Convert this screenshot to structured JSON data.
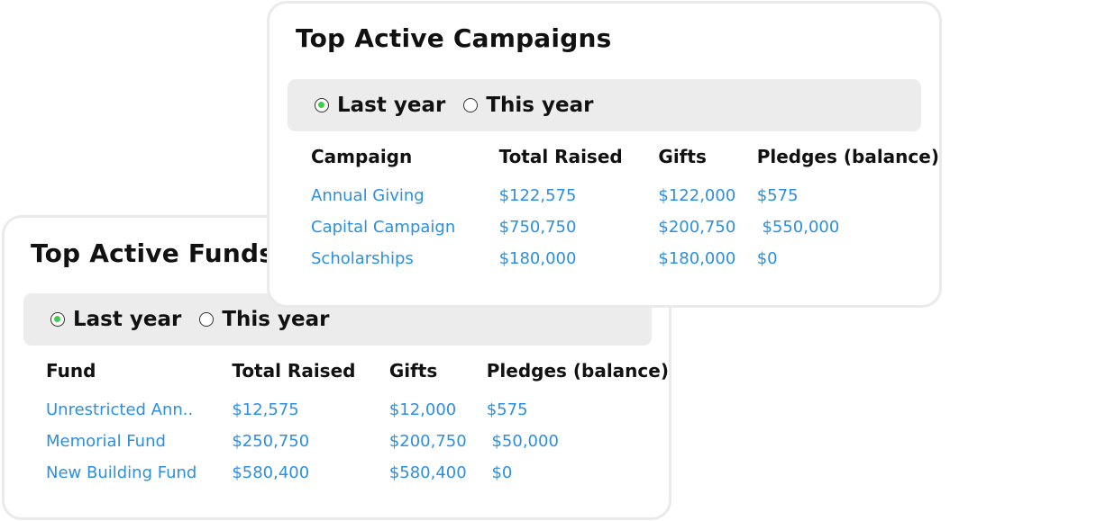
{
  "funds": {
    "title": "Top Active Funds",
    "toggle": {
      "option_last": "Last year",
      "option_this": "This year",
      "selected": "Last year"
    },
    "columns": [
      "Fund",
      "Total Raised",
      "Gifts",
      "Pledges (balance)"
    ],
    "rows": [
      [
        "Unrestricted Ann..",
        "$12,575",
        "$12,000",
        "$575"
      ],
      [
        "Memorial Fund",
        "$250,750",
        "$200,750",
        " $50,000"
      ],
      [
        "New Building Fund",
        "$580,400",
        "$580,400",
        " $0"
      ]
    ]
  },
  "campaigns": {
    "title": "Top Active Campaigns",
    "toggle": {
      "option_last": "Last year",
      "option_this": "This year",
      "selected": "Last year"
    },
    "columns": [
      "Campaign",
      "Total Raised",
      "Gifts",
      "Pledges (balance)"
    ],
    "rows": [
      [
        "Annual Giving",
        "$122,575",
        "$122,000",
        "$575"
      ],
      [
        "Capital Campaign",
        "$750,750",
        "$200,750",
        " $550,000"
      ],
      [
        "Scholarships",
        "$180,000",
        "$180,000",
        "$0"
      ]
    ]
  },
  "colors": {
    "link": "#2d8fdf",
    "radio_selected": "#3ccf4e",
    "toggle_bg": "#ececec",
    "card_border": "#eaeaea"
  }
}
